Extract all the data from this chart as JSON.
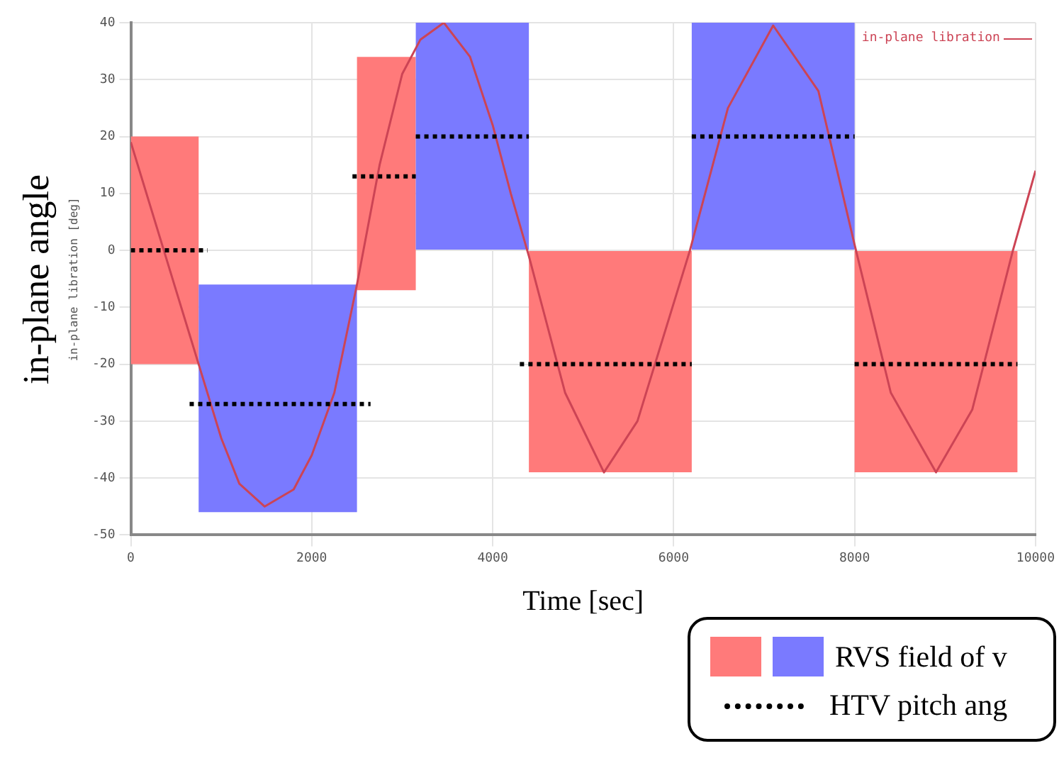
{
  "chart_data": {
    "type": "line",
    "xlabel": "Time [sec]",
    "ylabel": "in-plane angle",
    "annotations": [
      "in-plane libration [deg]"
    ],
    "xlim": [
      0,
      10000
    ],
    "xticks": [
      0,
      2000,
      4000,
      6000,
      8000,
      10000
    ],
    "ylim": [
      -50,
      40
    ],
    "yticks": [
      -50,
      -40,
      -30,
      -20,
      -10,
      0,
      10,
      20,
      30,
      40
    ],
    "grid": true,
    "legend": "bottom right",
    "series": [
      {
        "name": "in-plane libration",
        "color": "#cc4455",
        "x": [
          0,
          750,
          1000,
          1200,
          1480,
          1800,
          2000,
          2250,
          2500,
          2750,
          3000,
          3200,
          3460,
          3750,
          4000,
          4200,
          4400,
          4800,
          5230,
          5600,
          6180,
          6600,
          7100,
          7600,
          8000,
          8400,
          8900,
          9300,
          9750,
          10000
        ],
        "values": [
          19,
          -20,
          -33,
          -41,
          -45,
          -42,
          -36,
          -25,
          -6,
          15,
          31,
          37,
          40,
          34,
          22,
          10,
          -1,
          -25,
          -39,
          -30,
          0,
          25,
          39.5,
          28,
          1,
          -25,
          -39,
          -28,
          0,
          14
        ]
      },
      {
        "name": "RVS field of v",
        "type": "bar",
        "x": [
          375,
          1625,
          2825,
          3775,
          5300,
          7100,
          8900
        ],
        "base": [
          -20,
          -46,
          -7,
          0,
          -39,
          0,
          -39
        ],
        "values": [
          40,
          40,
          41,
          40,
          39,
          40,
          39
        ],
        "colors": [
          "#ff7a7a",
          "#7a7aff",
          "#ff7a7a",
          "#7a7aff",
          "#ff7a7a",
          "#7a7aff",
          "#ff7a7a"
        ]
      },
      {
        "name": "HTV pitch ang",
        "line_style": "dotted",
        "color": "#000000",
        "x": [
          0,
          850
        ],
        "values": [
          0,
          0
        ]
      },
      {
        "line_style": "dotted",
        "color": "#000000",
        "x": [
          650,
          2650
        ],
        "values": [
          -27,
          -27
        ]
      },
      {
        "line_style": "dotted",
        "color": "#000000",
        "x": [
          2450,
          3150
        ],
        "values": [
          13,
          13
        ]
      },
      {
        "line_style": "dotted",
        "color": "#000000",
        "x": [
          3150,
          4400
        ],
        "values": [
          20,
          20
        ]
      },
      {
        "line_style": "dotted",
        "color": "#000000",
        "x": [
          4300,
          6200
        ],
        "values": [
          -20,
          -20
        ]
      },
      {
        "line_style": "dotted",
        "color": "#000000",
        "x": [
          6200,
          8000
        ],
        "values": [
          20,
          20
        ]
      },
      {
        "line_style": "dotted",
        "color": "#000000",
        "x": [
          8000,
          9800
        ],
        "values": [
          -20,
          -20
        ]
      }
    ]
  }
}
